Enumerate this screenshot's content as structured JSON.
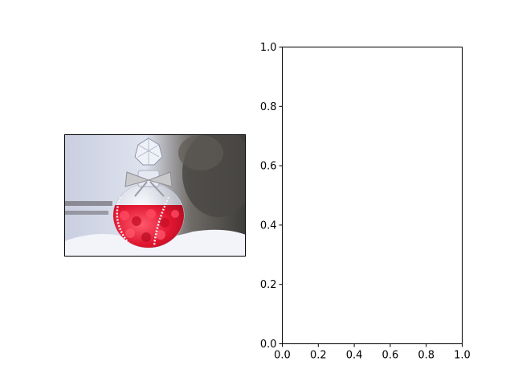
{
  "figure": {
    "left_panel": {
      "kind": "photo",
      "subject": "glass perfume bottle with crystal stopper, filled with red heart beads, resting on snow"
    },
    "colors": {
      "axes_edge": "#000000",
      "background": "#ffffff",
      "bead_red": "#e0152f",
      "snow": "#f2f4fa"
    }
  },
  "chart_data": {
    "type": "scatter",
    "series": [],
    "title": "",
    "xlabel": "",
    "ylabel": "",
    "xlim": [
      0,
      1
    ],
    "ylim": [
      0,
      1
    ],
    "xticks": [
      "0.0",
      "0.2",
      "0.4",
      "0.6",
      "0.8",
      "1.0"
    ],
    "yticks": [
      "0.0",
      "0.2",
      "0.4",
      "0.6",
      "0.8",
      "1.0"
    ],
    "grid": false
  }
}
